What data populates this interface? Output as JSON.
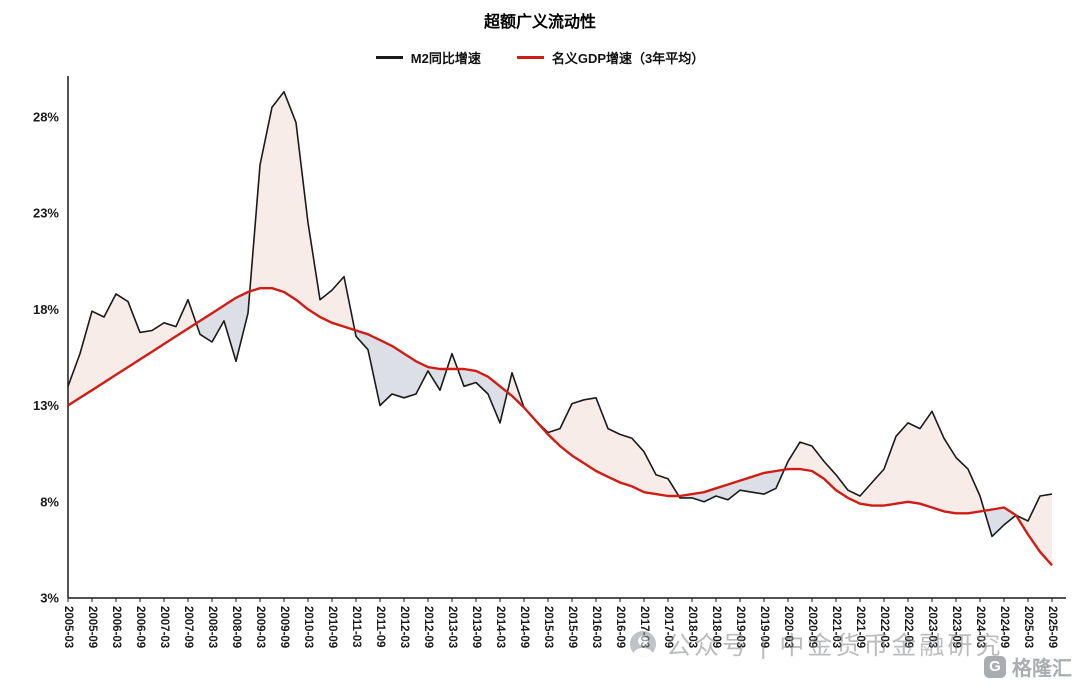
{
  "title": "超额广义流动性",
  "legend": {
    "items": [
      {
        "label": "M2同比增速",
        "color": "#1a1a1a"
      },
      {
        "label": "名义GDP增速（3年平均）",
        "color": "#cf1d16"
      }
    ]
  },
  "watermark": {
    "text": "公众号 | 中金货币金融研究",
    "logo_letter": "G",
    "logo_text": "格隆汇"
  },
  "chart_data": {
    "type": "line",
    "title": "超额广义流动性",
    "x_frequency": "quarterly",
    "x_start": "2005-03",
    "x_end": "2025-09",
    "x_tick_labels": [
      "2005-03",
      "2005-09",
      "2006-03",
      "2006-09",
      "2007-03",
      "2007-09",
      "2008-03",
      "2008-09",
      "2009-03",
      "2009-09",
      "2010-03",
      "2010-09",
      "2011-03",
      "2011-09",
      "2012-03",
      "2012-09",
      "2013-03",
      "2013-09",
      "2014-03",
      "2014-09",
      "2015-03",
      "2015-09",
      "2016-03",
      "2016-09",
      "2017-03",
      "2017-09",
      "2018-03",
      "2018-09",
      "2019-03",
      "2019-09",
      "2020-03",
      "2020-09",
      "2021-03",
      "2021-09",
      "2022-03",
      "2022-09",
      "2023-03",
      "2023-09",
      "2024-03",
      "2024-09",
      "2025-03",
      "2025-09"
    ],
    "y_ticks": [
      3,
      8,
      13,
      18,
      23,
      28
    ],
    "y_tick_labels": [
      "3%",
      "8%",
      "13%",
      "18%",
      "23%",
      "28%"
    ],
    "ylim": [
      3,
      29.5
    ],
    "grid": false,
    "legend_position": "top",
    "fill_between": {
      "above_color": "#f8ece8",
      "below_color": "#dcdfe5",
      "description": "pink shading where M2 growth exceeds nominal GDP growth, grey shading where M2 growth is below it"
    },
    "series": [
      {
        "name": "M2同比增速",
        "color": "#1a1a1a",
        "values": [
          14.0,
          15.7,
          17.9,
          17.6,
          18.8,
          18.4,
          16.8,
          16.9,
          17.3,
          17.1,
          18.5,
          16.7,
          16.3,
          17.4,
          15.3,
          17.8,
          25.5,
          28.5,
          29.3,
          27.7,
          22.5,
          18.5,
          19.0,
          19.7,
          16.6,
          15.9,
          13.0,
          13.6,
          13.4,
          13.6,
          14.8,
          13.8,
          15.7,
          14.0,
          14.2,
          13.6,
          12.1,
          14.7,
          12.9,
          12.2,
          11.6,
          11.8,
          13.1,
          13.3,
          13.4,
          11.8,
          11.5,
          11.3,
          10.6,
          9.4,
          9.2,
          8.2,
          8.2,
          8.0,
          8.3,
          8.1,
          8.6,
          8.5,
          8.4,
          8.7,
          10.1,
          11.1,
          10.9,
          10.1,
          9.4,
          8.6,
          8.3,
          9.0,
          9.7,
          11.4,
          12.1,
          11.8,
          12.7,
          11.3,
          10.3,
          9.7,
          8.3,
          6.2,
          6.8,
          7.3,
          7.0,
          8.3,
          8.4
        ]
      },
      {
        "name": "名义GDP增速（3年平均）",
        "color": "#cf1d16",
        "values": [
          13.0,
          13.4,
          13.8,
          14.2,
          14.6,
          15.0,
          15.4,
          15.8,
          16.2,
          16.6,
          17.0,
          17.4,
          17.8,
          18.2,
          18.6,
          18.9,
          19.1,
          19.1,
          18.9,
          18.5,
          18.0,
          17.6,
          17.3,
          17.1,
          16.9,
          16.7,
          16.4,
          16.1,
          15.7,
          15.3,
          15.0,
          14.9,
          14.9,
          14.9,
          14.8,
          14.5,
          14.0,
          13.5,
          12.9,
          12.2,
          11.5,
          10.9,
          10.4,
          10.0,
          9.6,
          9.3,
          9.0,
          8.8,
          8.5,
          8.4,
          8.3,
          8.3,
          8.4,
          8.5,
          8.7,
          8.9,
          9.1,
          9.3,
          9.5,
          9.6,
          9.7,
          9.7,
          9.6,
          9.2,
          8.6,
          8.2,
          7.9,
          7.8,
          7.8,
          7.9,
          8.0,
          7.9,
          7.7,
          7.5,
          7.4,
          7.4,
          7.5,
          7.6,
          7.7,
          7.3,
          6.3,
          5.4,
          4.7
        ]
      }
    ]
  }
}
